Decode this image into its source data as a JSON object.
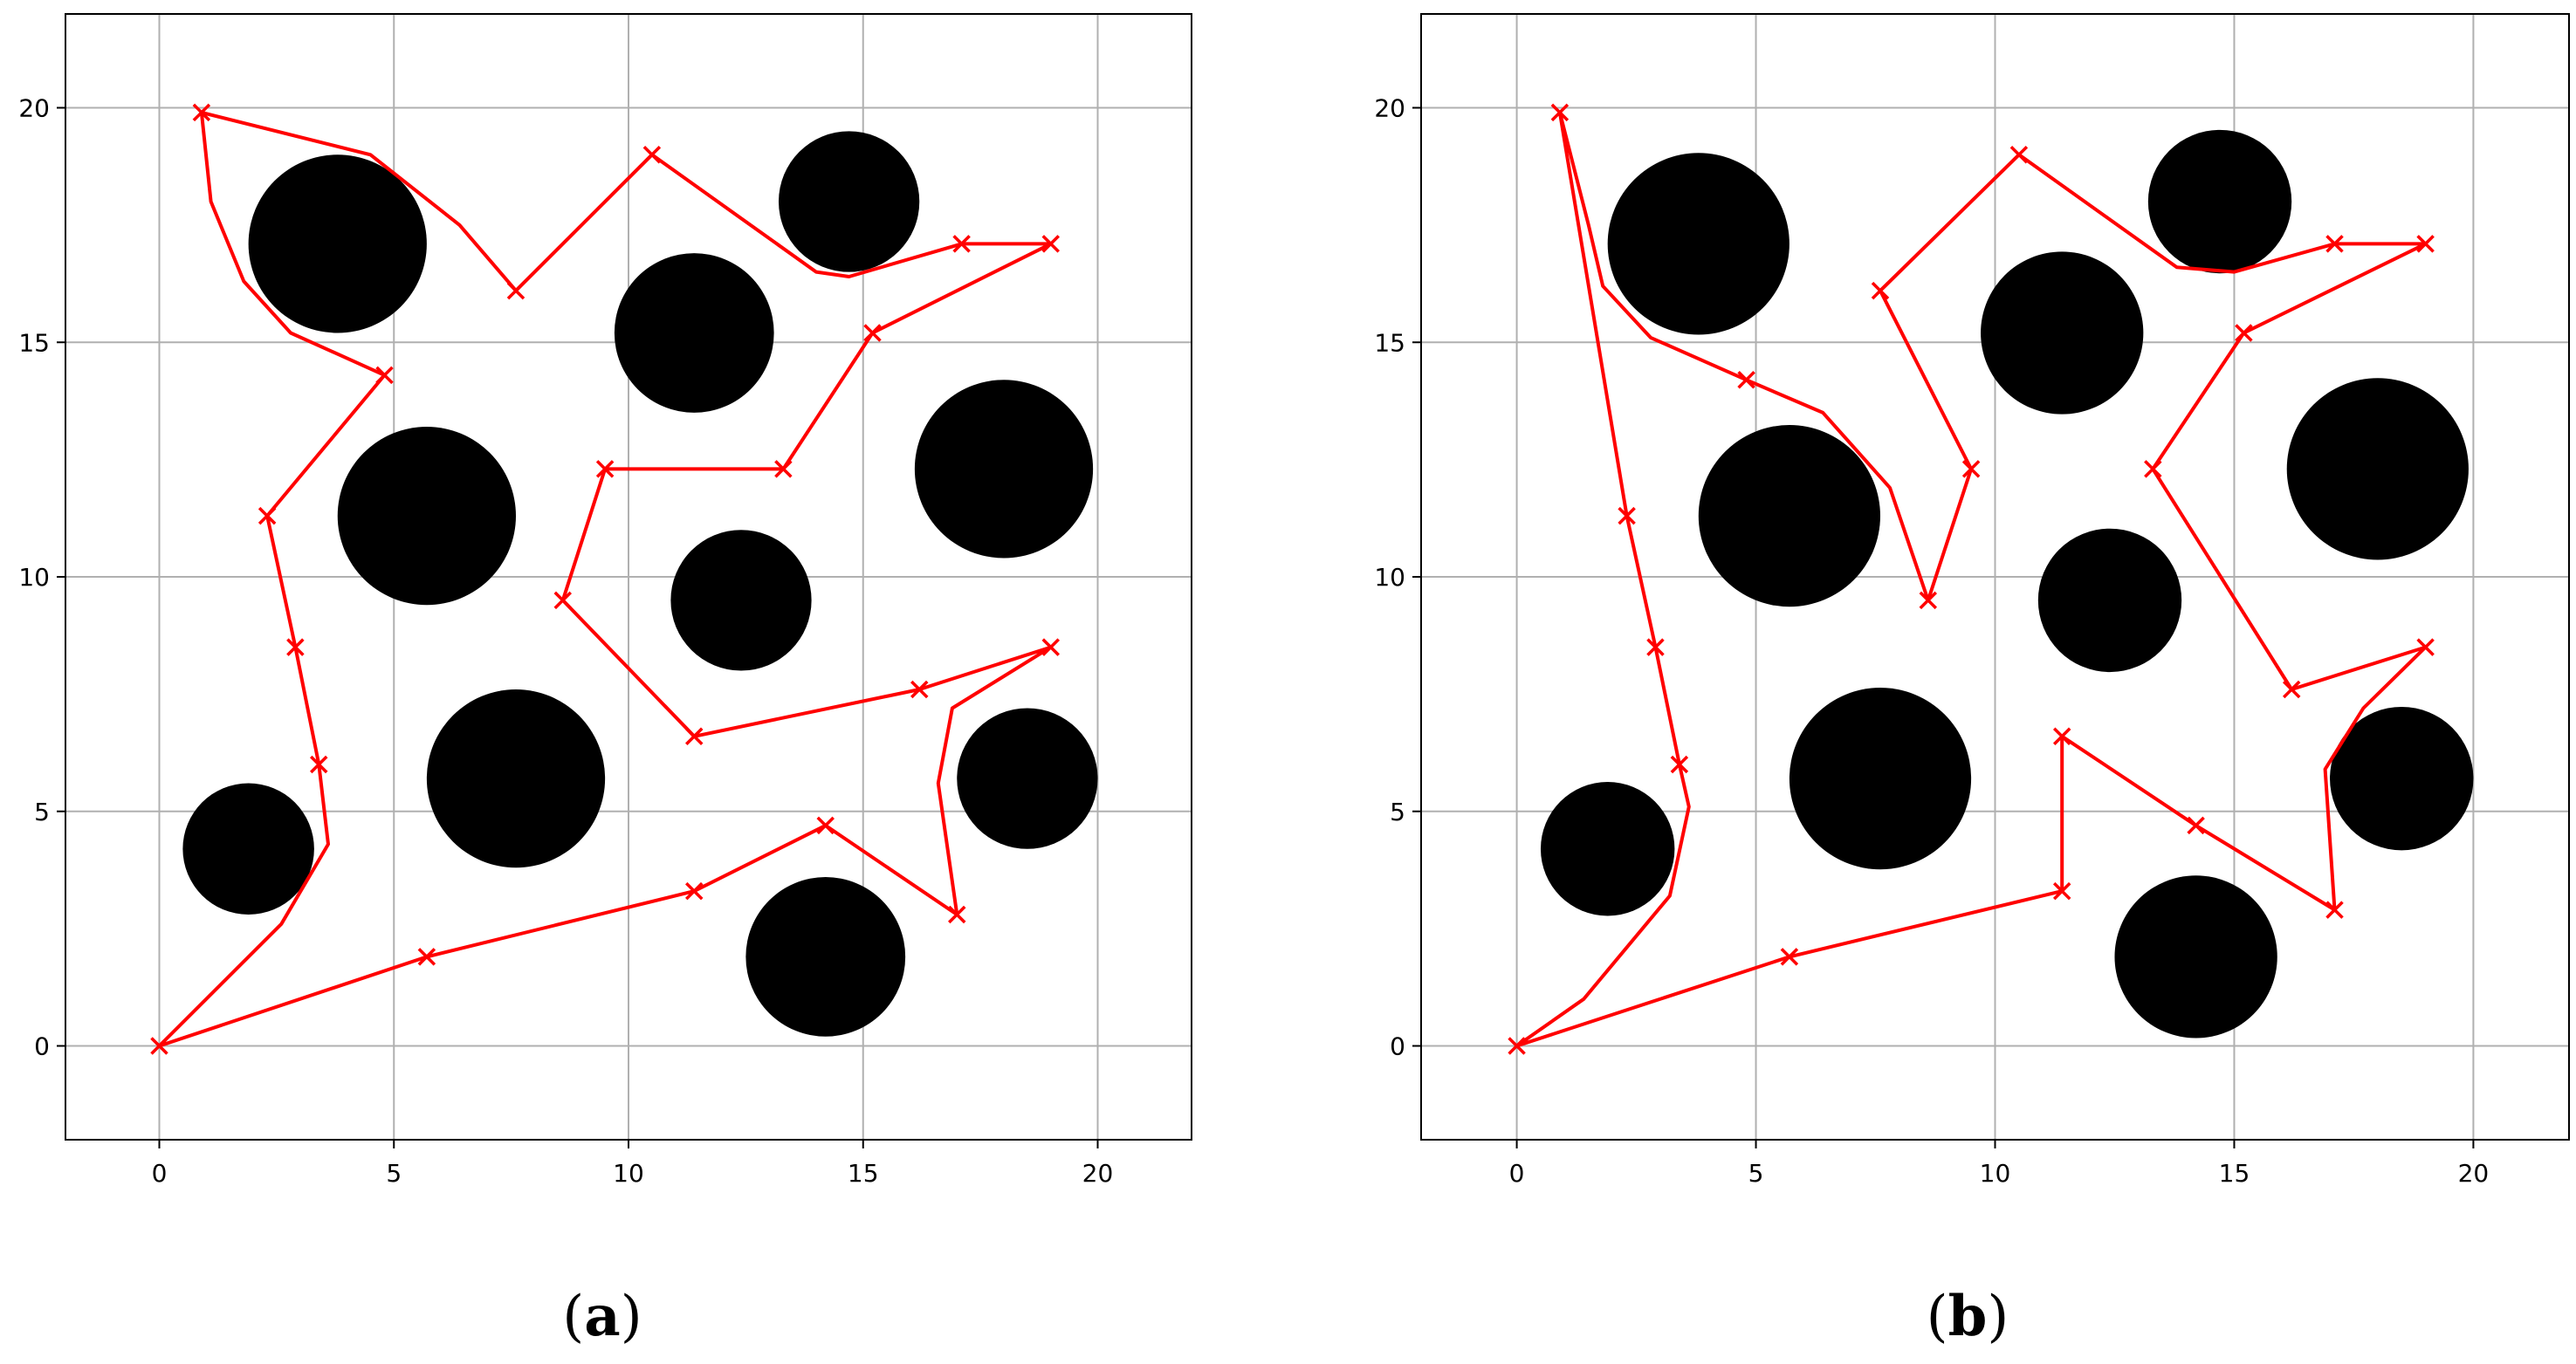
{
  "colors": {
    "path": "#ff0000",
    "obstacle": "#000000",
    "grid": "#b0b0b0",
    "axes": "#000000",
    "background": "#ffffff"
  },
  "chart_data": [
    {
      "type": "line",
      "panel_label": "a",
      "xlim": [
        -2,
        22
      ],
      "ylim": [
        -2,
        22
      ],
      "xticks": [
        0,
        5,
        10,
        15,
        20
      ],
      "yticks": [
        0,
        5,
        10,
        15,
        20
      ],
      "grid": true,
      "obstacles": [
        {
          "x": 3.8,
          "y": 17.1,
          "r": 1.9
        },
        {
          "x": 14.7,
          "y": 18.0,
          "r": 1.5
        },
        {
          "x": 11.4,
          "y": 15.2,
          "r": 1.7
        },
        {
          "x": 5.7,
          "y": 11.3,
          "r": 1.9
        },
        {
          "x": 18.0,
          "y": 12.3,
          "r": 1.9
        },
        {
          "x": 12.4,
          "y": 9.5,
          "r": 1.5
        },
        {
          "x": 7.6,
          "y": 5.7,
          "r": 1.9
        },
        {
          "x": 18.5,
          "y": 5.7,
          "r": 1.5
        },
        {
          "x": 1.9,
          "y": 4.2,
          "r": 1.4
        },
        {
          "x": 14.2,
          "y": 1.9,
          "r": 1.7
        }
      ],
      "path": [
        [
          0,
          0
        ],
        [
          2.6,
          2.6
        ],
        [
          3.6,
          4.3
        ],
        [
          3.4,
          6.0
        ],
        [
          2.9,
          8.5
        ],
        [
          2.3,
          11.3
        ],
        [
          4.8,
          14.3
        ],
        [
          2.8,
          15.2
        ],
        [
          1.8,
          16.3
        ],
        [
          1.1,
          18.0
        ],
        [
          0.9,
          19.9
        ],
        [
          4.5,
          19.0
        ],
        [
          6.4,
          17.5
        ],
        [
          7.6,
          16.1
        ],
        [
          10.5,
          19.0
        ],
        [
          14.0,
          16.5
        ],
        [
          14.7,
          16.4
        ],
        [
          17.1,
          17.1
        ],
        [
          19.0,
          17.1
        ],
        [
          15.2,
          15.2
        ],
        [
          13.3,
          12.3
        ],
        [
          9.5,
          12.3
        ],
        [
          8.6,
          9.5
        ],
        [
          11.4,
          6.6
        ],
        [
          16.2,
          7.6
        ],
        [
          19.0,
          8.5
        ],
        [
          16.9,
          7.2
        ],
        [
          16.6,
          5.6
        ],
        [
          17.0,
          2.8
        ],
        [
          14.2,
          4.7
        ],
        [
          11.4,
          3.3
        ],
        [
          5.7,
          1.9
        ],
        [
          0,
          0
        ]
      ],
      "waypoints": [
        [
          0,
          0
        ],
        [
          3.4,
          6.0
        ],
        [
          2.9,
          8.5
        ],
        [
          2.3,
          11.3
        ],
        [
          4.8,
          14.3
        ],
        [
          0.9,
          19.9
        ],
        [
          7.6,
          16.1
        ],
        [
          10.5,
          19.0
        ],
        [
          17.1,
          17.1
        ],
        [
          19.0,
          17.1
        ],
        [
          15.2,
          15.2
        ],
        [
          13.3,
          12.3
        ],
        [
          9.5,
          12.3
        ],
        [
          8.6,
          9.5
        ],
        [
          11.4,
          6.6
        ],
        [
          16.2,
          7.6
        ],
        [
          19.0,
          8.5
        ],
        [
          17.0,
          2.8
        ],
        [
          14.2,
          4.7
        ],
        [
          11.4,
          3.3
        ],
        [
          5.7,
          1.9
        ]
      ]
    },
    {
      "type": "line",
      "panel_label": "b",
      "xlim": [
        -2,
        22
      ],
      "ylim": [
        -2,
        22
      ],
      "xticks": [
        0,
        5,
        10,
        15,
        20
      ],
      "yticks": [
        0,
        5,
        10,
        15,
        20
      ],
      "grid": true,
      "obstacles": [
        {
          "x": 3.8,
          "y": 17.1,
          "r": 1.9
        },
        {
          "x": 14.7,
          "y": 18.0,
          "r": 1.5
        },
        {
          "x": 11.4,
          "y": 15.2,
          "r": 1.7
        },
        {
          "x": 5.7,
          "y": 11.3,
          "r": 1.9
        },
        {
          "x": 18.0,
          "y": 12.3,
          "r": 1.9
        },
        {
          "x": 12.4,
          "y": 9.5,
          "r": 1.5
        },
        {
          "x": 7.6,
          "y": 5.7,
          "r": 1.9
        },
        {
          "x": 18.5,
          "y": 5.7,
          "r": 1.5
        },
        {
          "x": 1.9,
          "y": 4.2,
          "r": 1.4
        },
        {
          "x": 14.2,
          "y": 1.9,
          "r": 1.7
        }
      ],
      "path": [
        [
          0,
          0
        ],
        [
          1.4,
          1.0
        ],
        [
          3.2,
          3.2
        ],
        [
          3.6,
          5.1
        ],
        [
          3.4,
          6.0
        ],
        [
          2.9,
          8.5
        ],
        [
          2.3,
          11.3
        ],
        [
          0.9,
          19.9
        ],
        [
          1.5,
          17.5
        ],
        [
          1.8,
          16.2
        ],
        [
          2.8,
          15.1
        ],
        [
          4.8,
          14.2
        ],
        [
          6.4,
          13.5
        ],
        [
          7.8,
          11.9
        ],
        [
          8.6,
          9.5
        ],
        [
          9.5,
          12.3
        ],
        [
          7.6,
          16.1
        ],
        [
          10.5,
          19.0
        ],
        [
          13.8,
          16.6
        ],
        [
          15.0,
          16.5
        ],
        [
          17.1,
          17.1
        ],
        [
          19.0,
          17.1
        ],
        [
          15.2,
          15.2
        ],
        [
          13.3,
          12.3
        ],
        [
          16.2,
          7.6
        ],
        [
          19.0,
          8.5
        ],
        [
          17.7,
          7.2
        ],
        [
          16.9,
          5.9
        ],
        [
          17.1,
          2.9
        ],
        [
          14.2,
          4.7
        ],
        [
          11.4,
          6.6
        ],
        [
          11.4,
          3.3
        ],
        [
          5.7,
          1.9
        ],
        [
          0,
          0
        ]
      ],
      "waypoints": [
        [
          0,
          0
        ],
        [
          3.4,
          6.0
        ],
        [
          2.9,
          8.5
        ],
        [
          2.3,
          11.3
        ],
        [
          0.9,
          19.9
        ],
        [
          4.8,
          14.2
        ],
        [
          8.6,
          9.5
        ],
        [
          9.5,
          12.3
        ],
        [
          7.6,
          16.1
        ],
        [
          10.5,
          19.0
        ],
        [
          17.1,
          17.1
        ],
        [
          19.0,
          17.1
        ],
        [
          15.2,
          15.2
        ],
        [
          13.3,
          12.3
        ],
        [
          16.2,
          7.6
        ],
        [
          19.0,
          8.5
        ],
        [
          17.1,
          2.9
        ],
        [
          14.2,
          4.7
        ],
        [
          11.4,
          6.6
        ],
        [
          11.4,
          3.3
        ],
        [
          5.7,
          1.9
        ]
      ]
    }
  ]
}
